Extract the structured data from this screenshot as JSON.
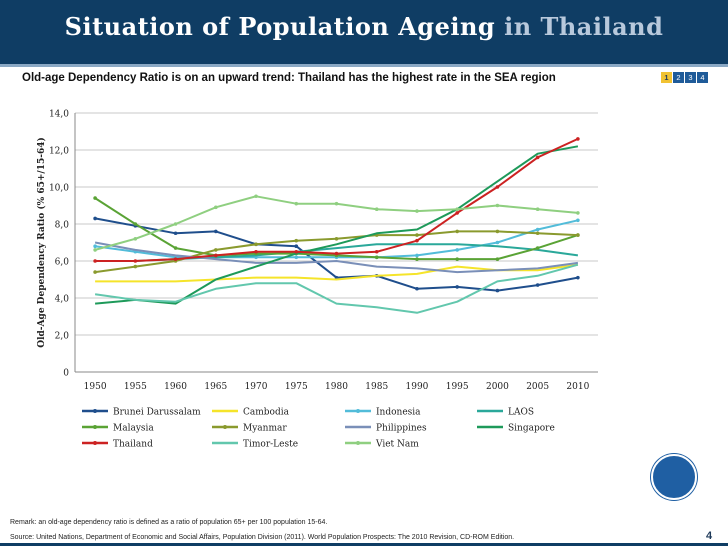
{
  "header": {
    "title_main": "Situation of Population Ageing",
    "title_accent": "in Thailand"
  },
  "subtitle": "Old-age Dependency Ratio is on an upward  trend: Thailand has the highest rate in the SEA region",
  "pager": [
    "1",
    "2",
    "3",
    "4"
  ],
  "colors": {
    "header": "#0f3d64",
    "accent": "#1f5fa3"
  },
  "chart_data": {
    "type": "line",
    "title": "",
    "xlabel": "",
    "ylabel": "Old-Age Dependency Ratio (% 65+/15-64)",
    "categories": [
      "1950",
      "1955",
      "1960",
      "1965",
      "1970",
      "1975",
      "1980",
      "1985",
      "1990",
      "1995",
      "2000",
      "2005",
      "2010"
    ],
    "ylim": [
      0,
      14
    ],
    "yticks": [
      "0",
      "2,0",
      "4,0",
      "6,0",
      "8,0",
      "10,0",
      "12,0",
      "14,0"
    ],
    "grid": true,
    "legend_position": "bottom",
    "series": [
      {
        "name": "Brunei Darussalam",
        "color": "#1f4e8c",
        "marker": true,
        "values": [
          8.3,
          7.9,
          7.5,
          7.6,
          6.9,
          6.8,
          5.1,
          5.2,
          4.5,
          4.6,
          4.4,
          4.7,
          5.1
        ]
      },
      {
        "name": "Cambodia",
        "color": "#f5e42a",
        "marker": false,
        "values": [
          4.9,
          4.9,
          4.9,
          5.0,
          5.1,
          5.1,
          5.0,
          5.2,
          5.3,
          5.7,
          5.5,
          5.5,
          5.8
        ]
      },
      {
        "name": "Indonesia",
        "color": "#52bcd9",
        "marker": true,
        "values": [
          6.8,
          6.5,
          6.2,
          6.2,
          6.2,
          6.2,
          6.2,
          6.2,
          6.3,
          6.6,
          7.0,
          7.7,
          8.2
        ]
      },
      {
        "name": "LAOS",
        "color": "#2aa89a",
        "marker": false,
        "values": [
          6.0,
          6.0,
          6.1,
          6.2,
          6.3,
          6.5,
          6.7,
          6.9,
          6.9,
          6.9,
          6.8,
          6.6,
          6.3
        ]
      },
      {
        "name": "Malaysia",
        "color": "#5aa335",
        "marker": true,
        "values": [
          9.4,
          8.0,
          6.7,
          6.3,
          6.4,
          6.4,
          6.3,
          6.2,
          6.1,
          6.1,
          6.1,
          6.7,
          7.4
        ]
      },
      {
        "name": "Myanmar",
        "color": "#8a9a2e",
        "marker": true,
        "values": [
          5.4,
          5.7,
          6.0,
          6.6,
          6.9,
          7.1,
          7.2,
          7.4,
          7.4,
          7.6,
          7.6,
          7.5,
          7.4
        ]
      },
      {
        "name": "Philippines",
        "color": "#7a8fb8",
        "marker": false,
        "values": [
          7.0,
          6.6,
          6.3,
          6.1,
          5.9,
          5.9,
          6.0,
          5.7,
          5.6,
          5.4,
          5.5,
          5.6,
          5.9
        ]
      },
      {
        "name": "Singapore",
        "color": "#1e9a5a",
        "marker": false,
        "values": [
          3.7,
          3.9,
          3.7,
          5.0,
          5.7,
          6.4,
          6.9,
          7.5,
          7.7,
          8.8,
          10.3,
          11.8,
          12.2
        ]
      },
      {
        "name": "Thailand",
        "color": "#cc2222",
        "marker": true,
        "values": [
          6.0,
          6.0,
          6.1,
          6.3,
          6.5,
          6.5,
          6.4,
          6.5,
          7.1,
          8.6,
          10.0,
          11.6,
          12.6
        ]
      },
      {
        "name": "Timor-Leste",
        "color": "#62c7ad",
        "marker": false,
        "values": [
          4.2,
          3.9,
          3.8,
          4.5,
          4.8,
          4.8,
          3.7,
          3.5,
          3.2,
          3.8,
          4.9,
          5.2,
          5.8
        ]
      },
      {
        "name": "Viet Nam",
        "color": "#8fcf80",
        "marker": true,
        "values": [
          6.6,
          7.2,
          8.0,
          8.9,
          9.5,
          9.1,
          9.1,
          8.8,
          8.7,
          8.8,
          9.0,
          8.8,
          8.6
        ]
      }
    ]
  },
  "footer": {
    "remark": "Remark: an old-age dependency ratio is defined as a ratio of population 65+ per 100 population 15-64.",
    "source": "Source: United Nations, Department of Economic and Social Affairs, Population Division (2011). World Population Prospects: The 2010 Revision, CD-ROM Edition.",
    "page_number": "4"
  }
}
